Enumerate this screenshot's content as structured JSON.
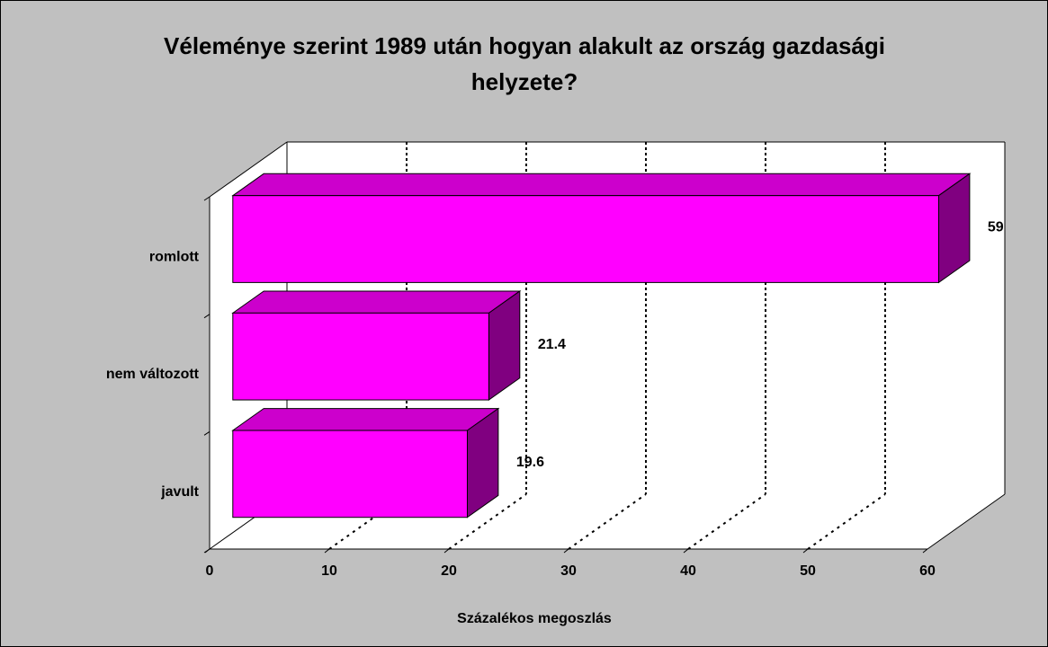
{
  "chart_data": {
    "type": "bar3d_horizontal",
    "title": "Véleménye szerint 1989 után hogyan alakult az ország gazdasági helyzete?",
    "x_label": "Százalékos megoszlás",
    "categories": [
      "romlott",
      "nem változott",
      "javult"
    ],
    "values": [
      59,
      21.4,
      19.6
    ],
    "color": "#ff00ff",
    "top_color": "#cc00cc",
    "side_color": "#800080",
    "xlim": [
      0,
      60
    ],
    "xticks": [
      0,
      10,
      20,
      30,
      40,
      50,
      60
    ],
    "grid": true
  }
}
